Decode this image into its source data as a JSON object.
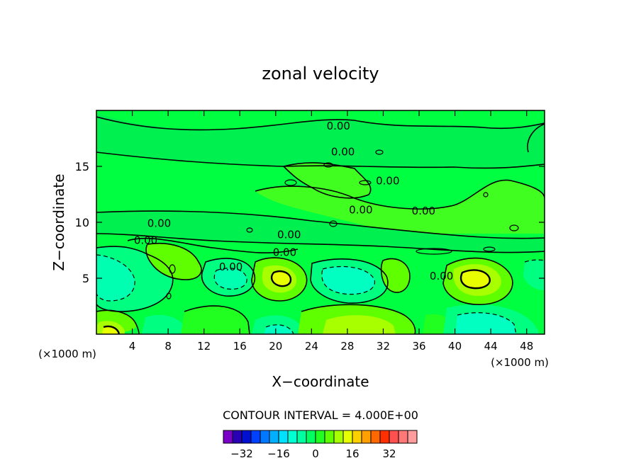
{
  "chart_data": {
    "type": "contour",
    "title": "zonal velocity",
    "xlabel": "X−coordinate",
    "ylabel": "Z−coordinate",
    "x_scale_note": "(×1000 m)",
    "y_scale_note": "(×1000 m)",
    "xlim": [
      0,
      50
    ],
    "ylim": [
      0,
      20
    ],
    "x_ticks": [
      4,
      8,
      12,
      16,
      20,
      24,
      28,
      32,
      36,
      40,
      44,
      48
    ],
    "y_ticks": [
      5,
      10,
      15
    ],
    "contour_interval_label": "CONTOUR INTERVAL = 4.000E+00",
    "contour_labels": [
      {
        "text": "0.00",
        "x": 27,
        "z": 18.6
      },
      {
        "text": "0.00",
        "x": 27.5,
        "z": 16.3
      },
      {
        "text": "0.00",
        "x": 32.5,
        "z": 13.7
      },
      {
        "text": "0.00",
        "x": 29.5,
        "z": 11.1
      },
      {
        "text": "0.00",
        "x": 36.5,
        "z": 11.0
      },
      {
        "text": "0.00",
        "x": 7,
        "z": 9.9
      },
      {
        "text": "0.00",
        "x": 5.5,
        "z": 8.4
      },
      {
        "text": "0.00",
        "x": 21.5,
        "z": 8.9
      },
      {
        "text": "0.00",
        "x": 21,
        "z": 7.3
      },
      {
        "text": "0.00",
        "x": 15,
        "z": 6.0
      },
      {
        "text": "0.00",
        "x": 38.5,
        "z": 5.2
      }
    ],
    "colorbar": {
      "ticks": [
        -32,
        -16,
        0,
        16,
        32
      ],
      "colors": [
        "#7a00c8",
        "#2a00b4",
        "#0010d0",
        "#0040ff",
        "#0078ff",
        "#00b0ff",
        "#00e0ff",
        "#00ffd2",
        "#00ffa0",
        "#00ff60",
        "#20ff20",
        "#60ff00",
        "#a8ff00",
        "#e8ff00",
        "#ffd000",
        "#ffa000",
        "#ff6800",
        "#ff3000",
        "#ff5050",
        "#ff7878",
        "#ff9c9c"
      ]
    }
  }
}
